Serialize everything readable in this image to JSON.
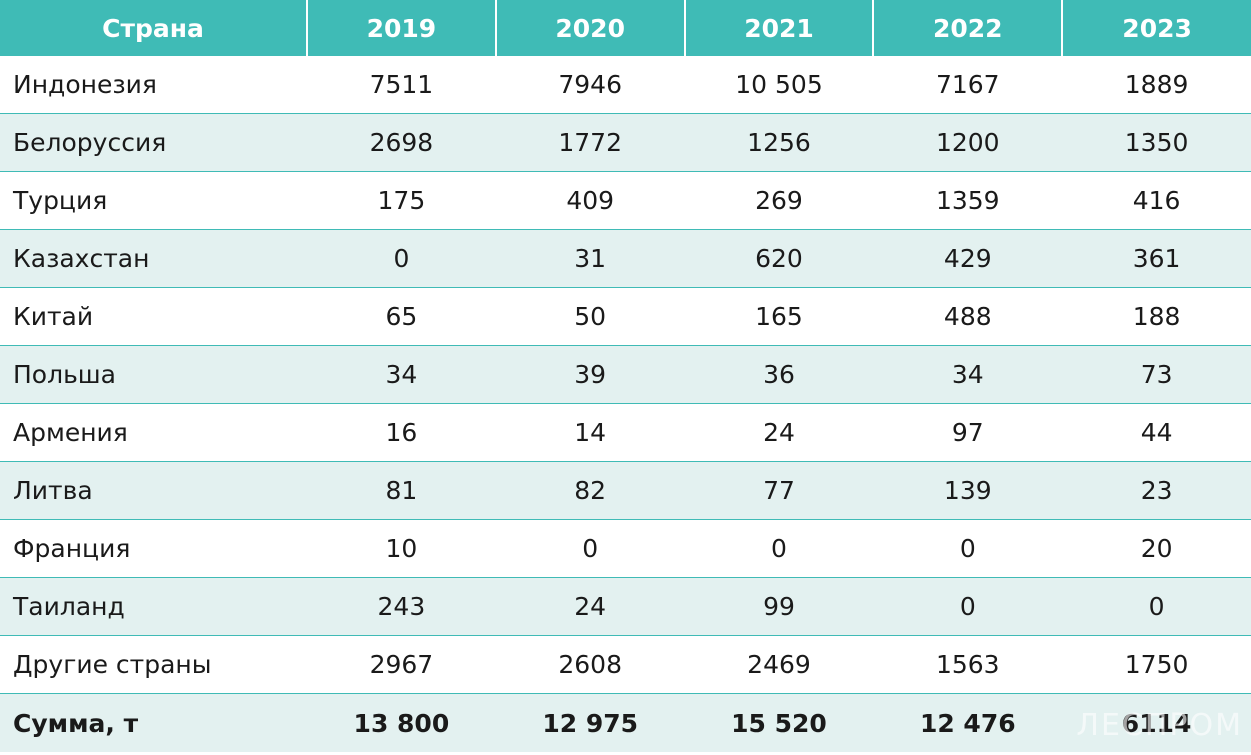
{
  "chart_data": {
    "type": "table",
    "columns": [
      "Страна",
      "2019",
      "2020",
      "2021",
      "2022",
      "2023"
    ],
    "rows": [
      [
        "Индонезия",
        "7511",
        "7946",
        "10 505",
        "7167",
        "1889"
      ],
      [
        "Белоруссия",
        "2698",
        "1772",
        "1256",
        "1200",
        "1350"
      ],
      [
        "Турция",
        "175",
        "409",
        "269",
        "1359",
        "416"
      ],
      [
        "Казахстан",
        "0",
        "31",
        "620",
        "429",
        "361"
      ],
      [
        "Китай",
        "65",
        "50",
        "165",
        "488",
        "188"
      ],
      [
        "Польша",
        "34",
        "39",
        "36",
        "34",
        "73"
      ],
      [
        "Армения",
        "16",
        "14",
        "24",
        "97",
        "44"
      ],
      [
        "Литва",
        "81",
        "82",
        "77",
        "139",
        "23"
      ],
      [
        "Франция",
        "10",
        "0",
        "0",
        "0",
        "20"
      ],
      [
        "Таиланд",
        "243",
        "24",
        "99",
        "0",
        "0"
      ],
      [
        "Другие страны",
        "2967",
        "2608",
        "2469",
        "1563",
        "1750"
      ]
    ],
    "total": [
      "Сумма, т",
      "13 800",
      "12 975",
      "15 520",
      "12 476",
      "6114"
    ]
  },
  "watermark": "ЛЕСПРОМ",
  "colors": {
    "header_bg": "#3fbbb6",
    "stripe_bg": "#e3f1f0",
    "text": "#1a1a1a"
  }
}
